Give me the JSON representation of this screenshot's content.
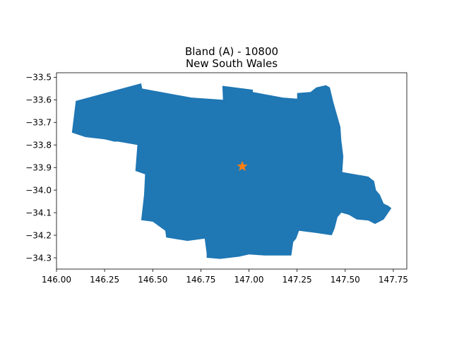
{
  "title": {
    "line1": "Bland (A) - 10800",
    "line2": "New South Wales"
  },
  "map": {
    "region_name": "Bland (A)",
    "region_code": "10800",
    "state": "New South Wales",
    "fill_color": "#1f77b4",
    "marker": {
      "shape": "star",
      "color": "#ff7f0e",
      "lon": 146.965,
      "lat": -33.895
    },
    "outline_lonlat": [
      [
        146.1,
        -33.605
      ],
      [
        146.44,
        -33.527
      ],
      [
        146.445,
        -33.55
      ],
      [
        146.7,
        -33.59
      ],
      [
        146.865,
        -33.6
      ],
      [
        146.862,
        -33.538
      ],
      [
        147.02,
        -33.555
      ],
      [
        147.02,
        -33.565
      ],
      [
        147.175,
        -33.59
      ],
      [
        147.25,
        -33.595
      ],
      [
        147.25,
        -33.57
      ],
      [
        147.32,
        -33.565
      ],
      [
        147.35,
        -33.545
      ],
      [
        147.4,
        -33.535
      ],
      [
        147.42,
        -33.545
      ],
      [
        147.44,
        -33.615
      ],
      [
        147.46,
        -33.675
      ],
      [
        147.475,
        -33.72
      ],
      [
        147.48,
        -33.78
      ],
      [
        147.49,
        -33.85
      ],
      [
        147.485,
        -33.92
      ],
      [
        147.62,
        -33.94
      ],
      [
        147.65,
        -33.96
      ],
      [
        147.66,
        -34.0
      ],
      [
        147.68,
        -34.02
      ],
      [
        147.7,
        -34.06
      ],
      [
        147.725,
        -34.07
      ],
      [
        147.74,
        -34.08
      ],
      [
        147.7,
        -34.13
      ],
      [
        147.655,
        -34.15
      ],
      [
        147.62,
        -34.135
      ],
      [
        147.56,
        -34.13
      ],
      [
        147.52,
        -34.11
      ],
      [
        147.48,
        -34.1
      ],
      [
        147.46,
        -34.12
      ],
      [
        147.445,
        -34.17
      ],
      [
        147.43,
        -34.2
      ],
      [
        147.35,
        -34.19
      ],
      [
        147.26,
        -34.18
      ],
      [
        147.245,
        -34.215
      ],
      [
        147.23,
        -34.23
      ],
      [
        147.22,
        -34.29
      ],
      [
        147.08,
        -34.29
      ],
      [
        147.0,
        -34.285
      ],
      [
        146.95,
        -34.295
      ],
      [
        146.9,
        -34.3
      ],
      [
        146.85,
        -34.305
      ],
      [
        146.78,
        -34.3
      ],
      [
        146.78,
        -34.28
      ],
      [
        146.77,
        -34.215
      ],
      [
        146.68,
        -34.225
      ],
      [
        146.57,
        -34.21
      ],
      [
        146.565,
        -34.18
      ],
      [
        146.5,
        -34.14
      ],
      [
        146.44,
        -34.133
      ],
      [
        146.455,
        -34.02
      ],
      [
        146.46,
        -33.93
      ],
      [
        146.41,
        -33.915
      ],
      [
        146.42,
        -33.8
      ],
      [
        146.32,
        -33.785
      ],
      [
        146.3,
        -33.785
      ],
      [
        146.25,
        -33.775
      ],
      [
        146.15,
        -33.765
      ],
      [
        146.08,
        -33.745
      ]
    ]
  },
  "chart_data": {
    "type": "map",
    "title": "Bland (A) - 10800\nNew South Wales",
    "xlabel": "",
    "ylabel": "",
    "xlim": [
      146.0,
      147.82
    ],
    "ylim": [
      -34.35,
      -33.48
    ],
    "x_ticks": [
      "146.00",
      "146.25",
      "146.50",
      "146.75",
      "147.00",
      "147.25",
      "147.50",
      "147.75"
    ],
    "x_tick_values": [
      146.0,
      146.25,
      146.5,
      146.75,
      147.0,
      147.25,
      147.5,
      147.75
    ],
    "y_ticks": [
      "−33.5",
      "−33.6",
      "−33.7",
      "−33.8",
      "−33.9",
      "−34.0",
      "−34.1",
      "−34.2",
      "−34.3"
    ],
    "y_tick_values": [
      -33.5,
      -33.6,
      -33.7,
      -33.8,
      -33.9,
      -34.0,
      -34.1,
      -34.2,
      -34.3
    ],
    "grid": false,
    "legend": "none"
  }
}
